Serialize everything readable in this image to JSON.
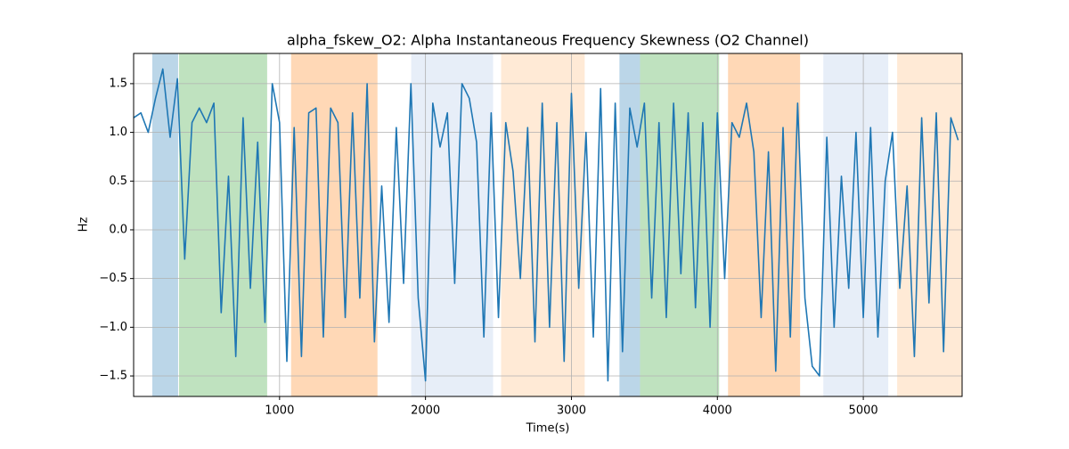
{
  "chart_data": {
    "type": "line",
    "title": "alpha_fskew_O2: Alpha Instantaneous Frequency Skewness (O2 Channel)",
    "x_label": "Time(s)",
    "y_label": "Hz",
    "x": [
      0,
      50,
      100,
      150,
      200,
      250,
      300,
      350,
      400,
      450,
      500,
      550,
      600,
      650,
      700,
      750,
      800,
      850,
      900,
      950,
      1000,
      1050,
      1100,
      1150,
      1200,
      1250,
      1300,
      1350,
      1400,
      1450,
      1500,
      1550,
      1600,
      1650,
      1700,
      1750,
      1800,
      1850,
      1900,
      1950,
      2000,
      2050,
      2100,
      2150,
      2200,
      2250,
      2300,
      2350,
      2400,
      2450,
      2500,
      2550,
      2600,
      2650,
      2700,
      2750,
      2800,
      2850,
      2900,
      2950,
      3000,
      3050,
      3100,
      3150,
      3200,
      3250,
      3300,
      3350,
      3400,
      3450,
      3500,
      3550,
      3600,
      3650,
      3700,
      3750,
      3800,
      3850,
      3900,
      3950,
      4000,
      4050,
      4100,
      4150,
      4200,
      4250,
      4300,
      4350,
      4400,
      4450,
      4500,
      4550,
      4600,
      4650,
      4700,
      4750,
      4800,
      4850,
      4900,
      4950,
      5000,
      5050,
      5100,
      5150,
      5200,
      5250,
      5300,
      5350,
      5400,
      5450,
      5500,
      5550,
      5600,
      5650
    ],
    "series": [
      {
        "color": "#1f77b4",
        "values": [
          1.15,
          1.2,
          1.0,
          1.35,
          1.65,
          0.95,
          1.55,
          -0.3,
          1.1,
          1.25,
          1.1,
          1.3,
          -0.85,
          0.55,
          -1.3,
          1.15,
          -0.6,
          0.9,
          -0.95,
          1.5,
          1.1,
          -1.35,
          1.05,
          -1.3,
          1.2,
          1.25,
          -1.1,
          1.25,
          1.1,
          -0.9,
          1.2,
          -0.7,
          1.5,
          -1.15,
          0.45,
          -0.95,
          1.05,
          -0.55,
          1.5,
          -0.7,
          -1.55,
          1.3,
          0.85,
          1.2,
          -0.55,
          1.5,
          1.35,
          0.9,
          -1.1,
          1.2,
          -0.9,
          1.1,
          0.6,
          -0.5,
          1.05,
          -1.15,
          1.3,
          -1.0,
          1.1,
          -1.35,
          1.4,
          -0.6,
          1.0,
          -1.1,
          1.45,
          -1.55,
          1.3,
          -1.25,
          1.25,
          0.85,
          1.3,
          -0.7,
          1.1,
          -0.9,
          1.3,
          -0.45,
          1.2,
          -0.8,
          1.1,
          -1.0,
          1.2,
          -0.5,
          1.1,
          0.95,
          1.3,
          0.8,
          -0.9,
          0.8,
          -1.45,
          1.05,
          -1.1,
          1.3,
          -0.7,
          -1.4,
          -1.5,
          0.95,
          -1.0,
          0.55,
          -0.6,
          1.0,
          -0.9,
          1.05,
          -1.1,
          0.5,
          1.0,
          -0.6,
          0.45,
          -1.3,
          1.15,
          -0.75,
          1.2,
          -1.25,
          1.15,
          0.92
        ]
      }
    ],
    "spans": [
      {
        "start": 128,
        "end": 305,
        "color": "#1f77b4"
      },
      {
        "start": 311,
        "end": 915,
        "color": "#2ca02c"
      },
      {
        "start": 1079,
        "end": 1671,
        "color": "#ff7f0e"
      },
      {
        "start": 1902,
        "end": 2463,
        "color": "#aec7e8"
      },
      {
        "start": 2518,
        "end": 3091,
        "color": "#ffbb78"
      },
      {
        "start": 3329,
        "end": 3470,
        "color": "#1f77b4"
      },
      {
        "start": 3470,
        "end": 4012,
        "color": "#2ca02c"
      },
      {
        "start": 4073,
        "end": 4567,
        "color": "#ff7f0e"
      },
      {
        "start": 4726,
        "end": 5171,
        "color": "#aec7e8"
      },
      {
        "start": 5232,
        "end": 5677,
        "color": "#ffbb78"
      }
    ],
    "xlim": [
      0,
      5677
    ],
    "ylim": [
      -1.71,
      1.81
    ],
    "xticks": [
      1000,
      2000,
      3000,
      4000,
      5000
    ],
    "yticks": [
      {
        "value": -1.5,
        "label": "−1.5"
      },
      {
        "value": -1.0,
        "label": "−1.0"
      },
      {
        "value": -0.5,
        "label": "−0.5"
      },
      {
        "value": 0.0,
        "label": "0.0"
      },
      0.5,
      {
        "value": 1.0,
        "label": "1.0"
      },
      1.5
    ],
    "grid": true
  }
}
